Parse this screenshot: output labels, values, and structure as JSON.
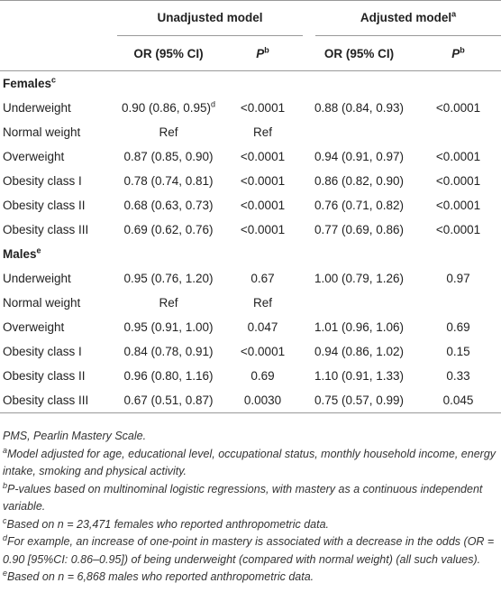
{
  "table": {
    "header": {
      "groups": [
        {
          "label": "Unadjusted model"
        },
        {
          "label": "Adjusted model",
          "sup": "a"
        }
      ],
      "columns": [
        {
          "label": "OR (95% CI)"
        },
        {
          "label": "P",
          "sup": "b",
          "italic": true
        },
        {
          "label": "OR (95% CI)"
        },
        {
          "label": "P",
          "sup": "b",
          "italic": true
        }
      ]
    },
    "sections": [
      {
        "label": "Females",
        "sup": "c",
        "rows": [
          {
            "label": "Underweight",
            "cells": [
              {
                "text": "0.90 (0.86, 0.95)",
                "sup": "d"
              },
              "<0.0001",
              "0.88 (0.84, 0.93)",
              "<0.0001"
            ]
          },
          {
            "label": "Normal weight",
            "cells": [
              "Ref",
              "Ref",
              null,
              null
            ]
          },
          {
            "label": "Overweight",
            "cells": [
              "0.87 (0.85, 0.90)",
              "<0.0001",
              "0.94 (0.91, 0.97)",
              "<0.0001"
            ]
          },
          {
            "label": "Obesity class I",
            "cells": [
              "0.78 (0.74, 0.81)",
              "<0.0001",
              "0.86 (0.82, 0.90)",
              "<0.0001"
            ]
          },
          {
            "label": "Obesity class II",
            "cells": [
              "0.68 (0.63, 0.73)",
              "<0.0001",
              "0.76 (0.71, 0.82)",
              "<0.0001"
            ]
          },
          {
            "label": "Obesity class III",
            "cells": [
              "0.69 (0.62, 0.76)",
              "<0.0001",
              "0.77 (0.69, 0.86)",
              "<0.0001"
            ]
          }
        ]
      },
      {
        "label": "Males",
        "sup": "e",
        "rows": [
          {
            "label": "Underweight",
            "cells": [
              "0.95 (0.76, 1.20)",
              "0.67",
              "1.00 (0.79, 1.26)",
              "0.97"
            ]
          },
          {
            "label": "Normal weight",
            "cells": [
              "Ref",
              "Ref",
              null,
              null
            ]
          },
          {
            "label": "Overweight",
            "cells": [
              "0.95 (0.91, 1.00)",
              "0.047",
              "1.01 (0.96, 1.06)",
              "0.69"
            ]
          },
          {
            "label": "Obesity class I",
            "cells": [
              "0.84 (0.78, 0.91)",
              "<0.0001",
              "0.94 (0.86, 1.02)",
              "0.15"
            ]
          },
          {
            "label": "Obesity class II",
            "cells": [
              "0.96 (0.80, 1.16)",
              "0.69",
              "1.10 (0.91, 1.33)",
              "0.33"
            ]
          },
          {
            "label": "Obesity class III",
            "cells": [
              "0.67 (0.51, 0.87)",
              "0.0030",
              "0.75 (0.57, 0.99)",
              "0.045"
            ]
          }
        ]
      }
    ],
    "footnotes": [
      {
        "text": "PMS, Pearlin Mastery Scale."
      },
      {
        "sup": "a",
        "text": "Model adjusted for age, educational level, occupational status, monthly household income, energy intake, smoking and physical activity."
      },
      {
        "sup": "b",
        "text": "P-values based on multinominal logistic regressions, with mastery as a continuous independent variable."
      },
      {
        "sup": "c",
        "text": "Based on n = 23,471 females who reported anthropometric data."
      },
      {
        "sup": "d",
        "text": "For example, an increase of one-point in mastery is associated with a decrease in the odds (OR = 0.90 [95%CI: 0.86–0.95]) of being underweight (compared with normal weight) (all such values)."
      },
      {
        "sup": "e",
        "text": "Based on n = 6,868 males who reported anthropometric data."
      }
    ]
  }
}
